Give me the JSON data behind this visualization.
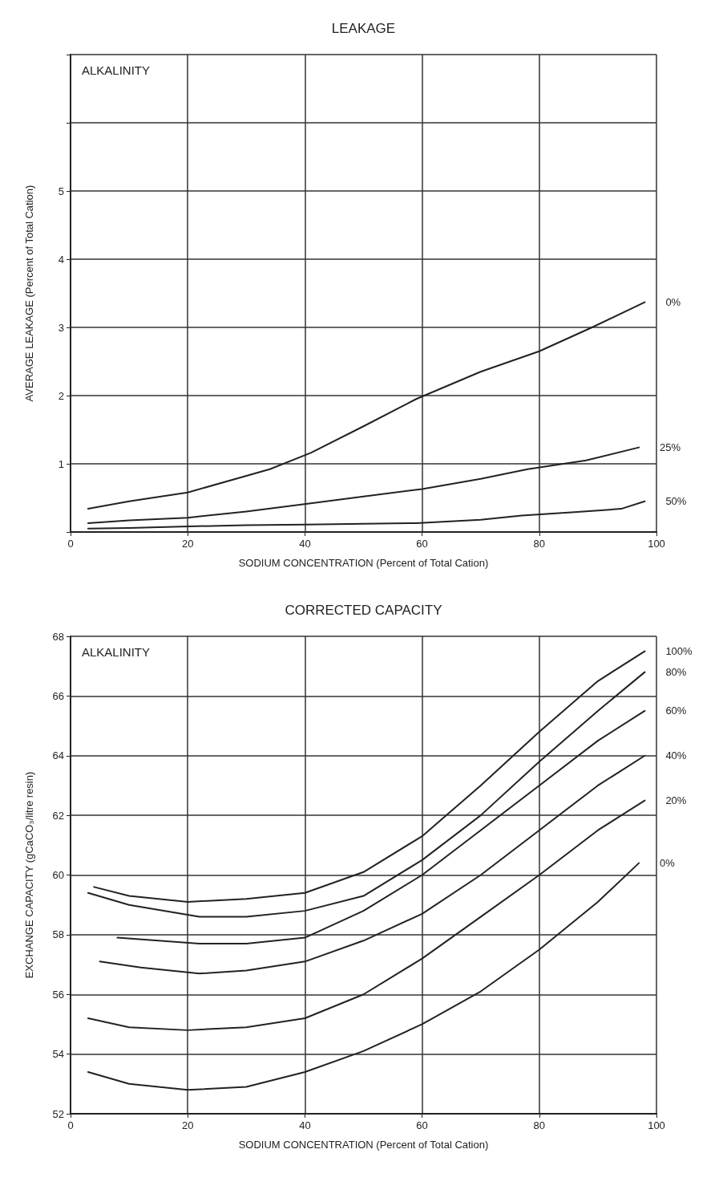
{
  "chart_data": [
    {
      "type": "line",
      "title": "LEAKAGE",
      "xlabel": "SODIUM CONCENTRATION (Percent of Total Cation)",
      "ylabel": "AVERAGE LEAKAGE (Percent of Total Cation)",
      "legend_title": "ALKALINITY",
      "xlim": [
        0,
        100
      ],
      "xticks": [
        0,
        20,
        40,
        60,
        80,
        100
      ],
      "ylim": [
        0,
        7
      ],
      "yticks": [
        {
          "value": 0,
          "label": null
        },
        1,
        2,
        3,
        4,
        5,
        {
          "value": 6,
          "label": null
        },
        {
          "value": 7,
          "label": null
        }
      ],
      "grid": true,
      "legend": false,
      "series": [
        {
          "name": "0%",
          "color": "#222222",
          "x": [
            3,
            10,
            20,
            34,
            41,
            50,
            59,
            70,
            80,
            89,
            98
          ],
          "values": [
            0.34,
            0.45,
            0.58,
            0.92,
            1.16,
            1.55,
            1.95,
            2.35,
            2.65,
            3.0,
            3.37
          ]
        },
        {
          "name": "25%",
          "color": "#222222",
          "x": [
            3,
            10,
            20,
            30,
            41,
            50,
            60,
            70,
            78,
            88,
            97
          ],
          "values": [
            0.13,
            0.17,
            0.21,
            0.3,
            0.42,
            0.52,
            0.63,
            0.78,
            0.92,
            1.05,
            1.24
          ]
        },
        {
          "name": "50%",
          "color": "#222222",
          "x": [
            3,
            10,
            19,
            30,
            40,
            50,
            59,
            70,
            77,
            86,
            94,
            98
          ],
          "values": [
            0.05,
            0.06,
            0.08,
            0.1,
            0.11,
            0.12,
            0.13,
            0.18,
            0.24,
            0.29,
            0.34,
            0.45
          ]
        }
      ]
    },
    {
      "type": "line",
      "title": "CORRECTED CAPACITY",
      "xlabel": "SODIUM CONCENTRATION (Percent of Total Cation)",
      "ylabel": "EXCHANGE CAPACITY (gCaCO₃/litre resin)",
      "legend_title": "ALKALINITY",
      "xlim": [
        0,
        100
      ],
      "xticks": [
        0,
        20,
        40,
        60,
        80,
        100
      ],
      "ylim": [
        52,
        68
      ],
      "yticks": [
        52,
        54,
        56,
        58,
        60,
        62,
        64,
        66,
        68
      ],
      "grid": true,
      "legend": false,
      "series": [
        {
          "name": "0%",
          "color": "#222222",
          "x": [
            3,
            10,
            20,
            30,
            40,
            50,
            60,
            70,
            80,
            90,
            97
          ],
          "values": [
            53.4,
            53.0,
            52.8,
            52.9,
            53.4,
            54.1,
            55.0,
            56.1,
            57.5,
            59.1,
            60.4
          ]
        },
        {
          "name": "20%",
          "color": "#222222",
          "x": [
            3,
            10,
            20,
            30,
            40,
            50,
            60,
            70,
            80,
            90,
            98
          ],
          "values": [
            55.2,
            54.9,
            54.8,
            54.9,
            55.2,
            56.0,
            57.2,
            58.6,
            60.0,
            61.5,
            62.5
          ]
        },
        {
          "name": "40%",
          "color": "#222222",
          "x": [
            5,
            12,
            22,
            30,
            40,
            50,
            60,
            70,
            80,
            90,
            98
          ],
          "values": [
            57.1,
            56.9,
            56.7,
            56.8,
            57.1,
            57.8,
            58.7,
            60.0,
            61.5,
            63.0,
            64.0
          ]
        },
        {
          "name": "60%",
          "color": "#222222",
          "x": [
            8,
            15,
            22,
            30,
            40,
            50,
            60,
            70,
            80,
            90,
            98
          ],
          "values": [
            57.9,
            57.8,
            57.7,
            57.7,
            57.9,
            58.8,
            60.0,
            61.5,
            63.0,
            64.5,
            65.5
          ]
        },
        {
          "name": "80%",
          "color": "#222222",
          "x": [
            3,
            10,
            22,
            30,
            40,
            50,
            60,
            70,
            80,
            90,
            98
          ],
          "values": [
            59.4,
            59.0,
            58.6,
            58.6,
            58.8,
            59.3,
            60.5,
            62.0,
            63.8,
            65.5,
            66.8
          ]
        },
        {
          "name": "100%",
          "color": "#222222",
          "x": [
            4,
            10,
            20,
            30,
            40,
            50,
            60,
            70,
            80,
            90,
            98
          ],
          "values": [
            59.6,
            59.3,
            59.1,
            59.2,
            59.4,
            60.1,
            61.3,
            63.0,
            64.8,
            66.5,
            67.5
          ]
        }
      ]
    }
  ]
}
